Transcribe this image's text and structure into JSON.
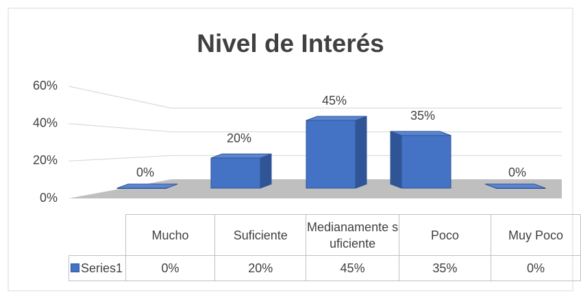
{
  "chart_data": {
    "type": "bar3d",
    "title": "Nivel de Interés",
    "categories": [
      "Mucho",
      "Suficiente",
      "Medianamente suficiente",
      "Poco",
      "Muy Poco"
    ],
    "series": [
      {
        "name": "Series1",
        "color": "#4472c4",
        "values": [
          0,
          20,
          45,
          35,
          0
        ],
        "value_labels": [
          "0%",
          "20%",
          "45%",
          "35%",
          "0%"
        ]
      }
    ],
    "ylim": [
      0,
      60
    ],
    "yticks": [
      {
        "value": 0,
        "label": "0%"
      },
      {
        "value": 20,
        "label": "20%"
      },
      {
        "value": 40,
        "label": "40%"
      },
      {
        "value": 60,
        "label": "60%"
      }
    ],
    "grid": true
  }
}
